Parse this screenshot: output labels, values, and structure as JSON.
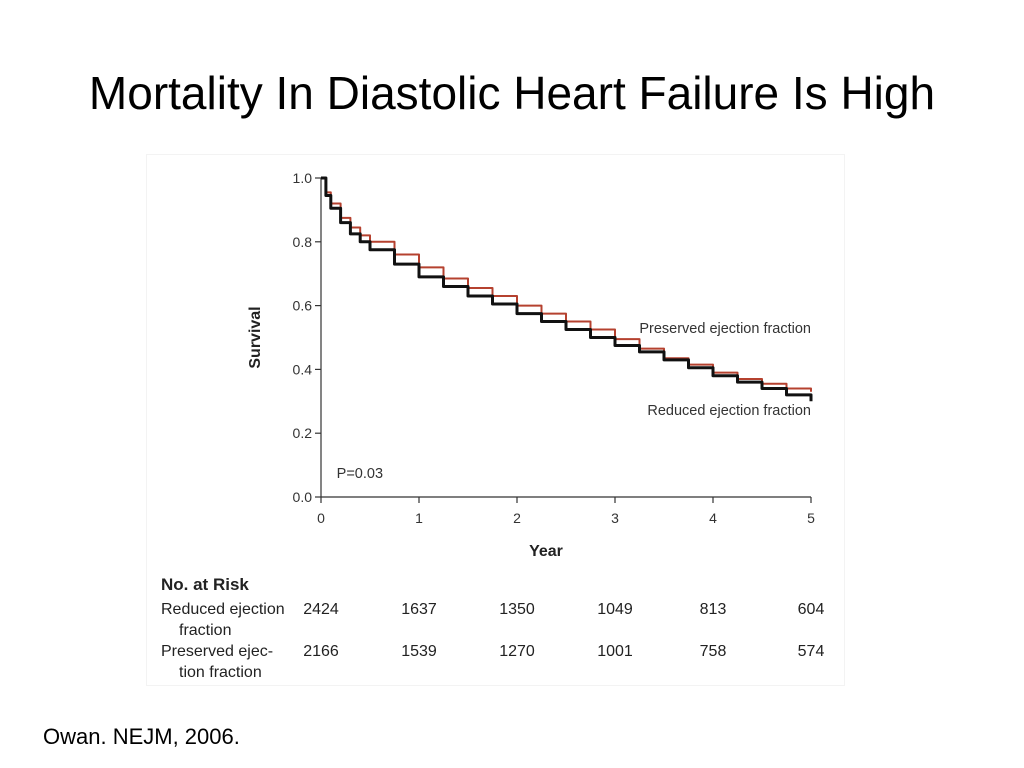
{
  "slide": {
    "title": "Mortality In Diastolic Heart Failure Is High",
    "citation": "Owan. NEJM, 2006."
  },
  "chart_data": {
    "type": "line",
    "title": "",
    "xlabel": "Year",
    "ylabel": "Survival",
    "xlim": [
      0,
      5
    ],
    "ylim": [
      0,
      1
    ],
    "x_ticks": [
      "0",
      "1",
      "2",
      "3",
      "4",
      "5"
    ],
    "y_ticks": [
      "0.0",
      "0.2",
      "0.4",
      "0.6",
      "0.8",
      "1.0"
    ],
    "grid": false,
    "legend": "inline-right",
    "annotation": "P=0.03",
    "series": [
      {
        "name": "Preserved ejection fraction",
        "color": "#b5412f",
        "points": [
          [
            0,
            1.0
          ],
          [
            0.05,
            0.955
          ],
          [
            0.1,
            0.92
          ],
          [
            0.2,
            0.875
          ],
          [
            0.3,
            0.845
          ],
          [
            0.4,
            0.82
          ],
          [
            0.5,
            0.8
          ],
          [
            0.75,
            0.76
          ],
          [
            1.0,
            0.72
          ],
          [
            1.25,
            0.685
          ],
          [
            1.5,
            0.655
          ],
          [
            1.75,
            0.63
          ],
          [
            2.0,
            0.6
          ],
          [
            2.25,
            0.575
          ],
          [
            2.5,
            0.55
          ],
          [
            2.75,
            0.525
          ],
          [
            3.0,
            0.495
          ],
          [
            3.25,
            0.465
          ],
          [
            3.5,
            0.435
          ],
          [
            3.75,
            0.415
          ],
          [
            4.0,
            0.39
          ],
          [
            4.25,
            0.37
          ],
          [
            4.5,
            0.355
          ],
          [
            4.75,
            0.34
          ],
          [
            5.0,
            0.33
          ]
        ]
      },
      {
        "name": "Reduced ejection fraction",
        "color": "#111111",
        "points": [
          [
            0,
            1.0
          ],
          [
            0.05,
            0.945
          ],
          [
            0.1,
            0.905
          ],
          [
            0.2,
            0.86
          ],
          [
            0.3,
            0.825
          ],
          [
            0.4,
            0.8
          ],
          [
            0.5,
            0.775
          ],
          [
            0.75,
            0.73
          ],
          [
            1.0,
            0.69
          ],
          [
            1.25,
            0.66
          ],
          [
            1.5,
            0.63
          ],
          [
            1.75,
            0.605
          ],
          [
            2.0,
            0.575
          ],
          [
            2.25,
            0.55
          ],
          [
            2.5,
            0.525
          ],
          [
            2.75,
            0.5
          ],
          [
            3.0,
            0.475
          ],
          [
            3.25,
            0.455
          ],
          [
            3.5,
            0.43
          ],
          [
            3.75,
            0.405
          ],
          [
            4.0,
            0.38
          ],
          [
            4.25,
            0.36
          ],
          [
            4.5,
            0.34
          ],
          [
            4.75,
            0.32
          ],
          [
            5.0,
            0.3
          ]
        ]
      }
    ]
  },
  "risk_table": {
    "title": "No. at Risk",
    "rows": [
      {
        "label_line1": "Reduced ejection",
        "label_line2": "fraction",
        "values": [
          "2424",
          "1637",
          "1350",
          "1049",
          "813",
          "604"
        ]
      },
      {
        "label_line1": "Preserved ejec-",
        "label_line2": "tion fraction",
        "values": [
          "2166",
          "1539",
          "1270",
          "1001",
          "758",
          "574"
        ]
      }
    ]
  }
}
